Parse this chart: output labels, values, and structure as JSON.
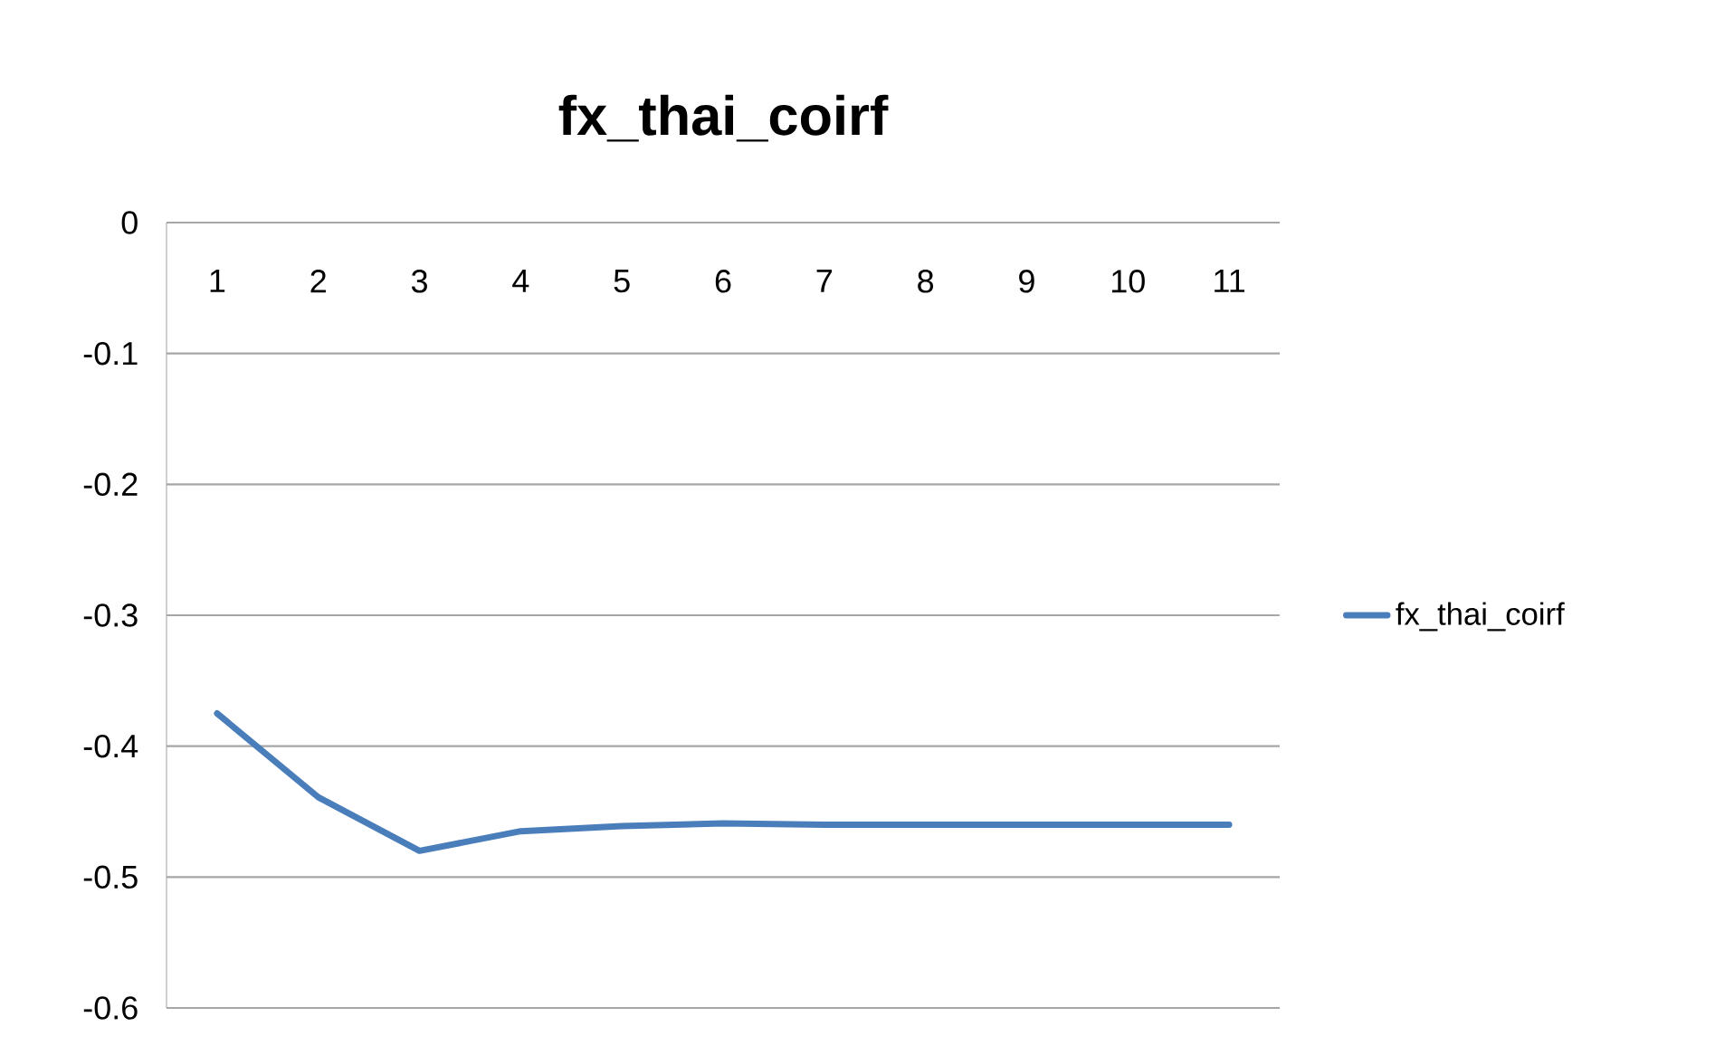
{
  "chart_data": {
    "type": "line",
    "title": "fx_thai_coirf",
    "categories": [
      "1",
      "2",
      "3",
      "4",
      "5",
      "6",
      "7",
      "8",
      "9",
      "10",
      "11"
    ],
    "series": [
      {
        "name": "fx_thai_coirf",
        "color": "#4a7ebb",
        "values": [
          -0.375,
          -0.439,
          -0.48,
          -0.465,
          -0.461,
          -0.459,
          -0.46,
          -0.46,
          -0.46,
          -0.46,
          -0.46
        ]
      }
    ],
    "ylim": [
      -0.6,
      0
    ],
    "yticks": [
      -0.6,
      -0.5,
      -0.4,
      -0.3,
      -0.2,
      -0.1,
      0
    ],
    "grid": "y",
    "legend": "right",
    "marker": "none",
    "line_style": "solid"
  }
}
